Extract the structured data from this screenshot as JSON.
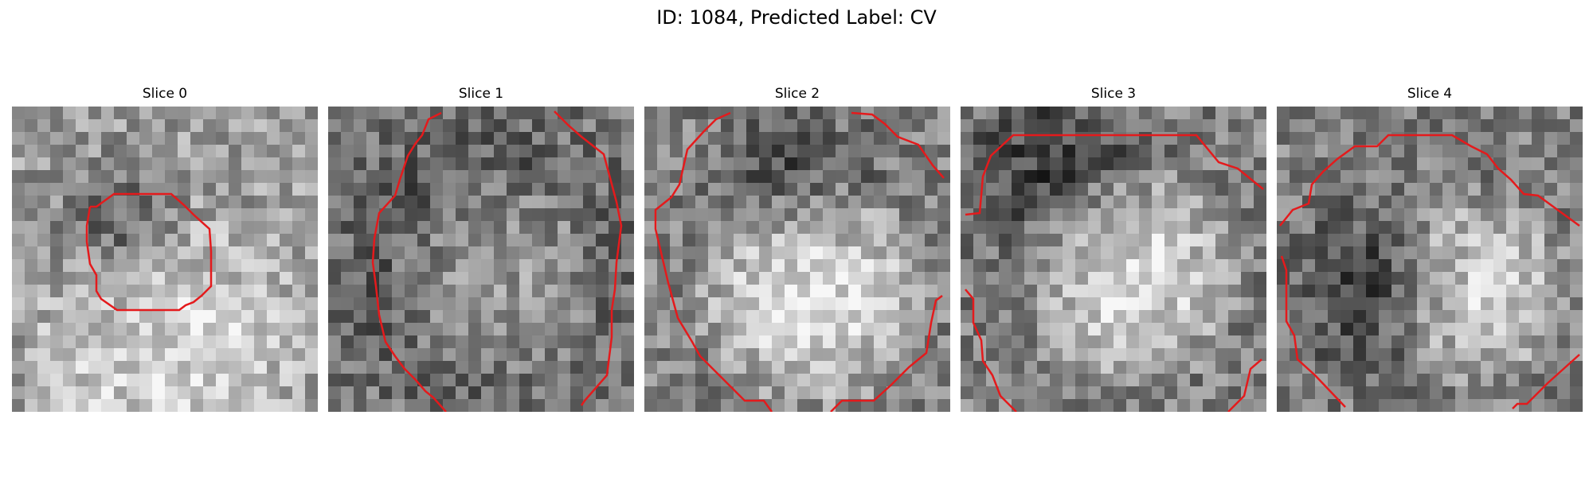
{
  "figure": {
    "title": "ID: 1084, Predicted Label: CV"
  },
  "panels": [
    {
      "title": "Slice 0"
    },
    {
      "title": "Slice 1"
    },
    {
      "title": "Slice 2"
    },
    {
      "title": "Slice 3"
    },
    {
      "title": "Slice 4"
    }
  ],
  "colors": {
    "contour": "#e41a1c",
    "background": "#ffffff"
  }
}
